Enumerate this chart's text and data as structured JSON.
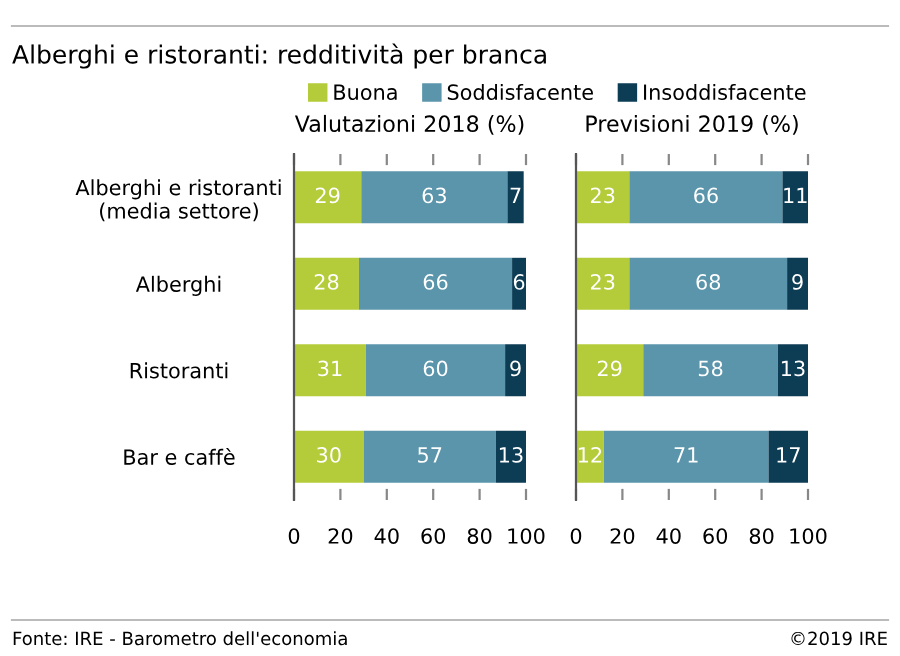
{
  "chart_data": [
    {
      "type": "bar",
      "orientation": "horizontal",
      "stacked": true,
      "title": "Alberghi e ristoranti: redditività per branca",
      "subtitle": "Valutazioni 2018 (%)",
      "categories": [
        "Alberghi e ristoranti\n(media settore)",
        "Alberghi",
        "Ristoranti",
        "Bar e caffè"
      ],
      "series": [
        {
          "name": "Buona",
          "color": "#b5cc3a",
          "values": [
            29,
            28,
            31,
            30
          ]
        },
        {
          "name": "Soddisfacente",
          "color": "#5b95ab",
          "values": [
            63,
            66,
            60,
            57
          ]
        },
        {
          "name": "Insoddisfacente",
          "color": "#0d3c55",
          "values": [
            7,
            6,
            9,
            13
          ]
        }
      ],
      "xlim": [
        0,
        100
      ],
      "xticks": [
        0,
        20,
        40,
        60,
        80,
        100
      ],
      "data_labels": true,
      "legend": "top",
      "grid": false,
      "annotations": [
        "Fonte: IRE - Barometro dell'economia",
        "©2019 IRE"
      ]
    },
    {
      "type": "bar",
      "orientation": "horizontal",
      "stacked": true,
      "subtitle": "Previsioni 2019 (%)",
      "categories": [
        null,
        null,
        null,
        null
      ],
      "series": [
        {
          "color": "#b5cc3a",
          "values": [
            23,
            23,
            29,
            12
          ]
        },
        {
          "color": "#5b95ab",
          "values": [
            66,
            68,
            58,
            71
          ]
        },
        {
          "color": "#0d3c55",
          "values": [
            11,
            9,
            13,
            17
          ]
        }
      ],
      "xlim": [
        0,
        100
      ],
      "xticks": [
        0,
        20,
        40,
        60,
        80,
        100
      ],
      "data_labels": true,
      "tick_labels": "x",
      "grid": false
    }
  ]
}
